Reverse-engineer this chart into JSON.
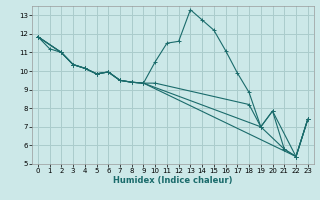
{
  "xlabel": "Humidex (Indice chaleur)",
  "bg_color": "#cce8e8",
  "grid_color": "#aacccc",
  "line_color": "#1a6b6b",
  "xlim": [
    -0.5,
    23.5
  ],
  "ylim": [
    5,
    13.5
  ],
  "xticks": [
    0,
    1,
    2,
    3,
    4,
    5,
    6,
    7,
    8,
    9,
    10,
    11,
    12,
    13,
    14,
    15,
    16,
    17,
    18,
    19,
    20,
    21,
    22,
    23
  ],
  "yticks": [
    5,
    6,
    7,
    8,
    9,
    10,
    11,
    12,
    13
  ],
  "lines": [
    {
      "x": [
        0,
        1,
        2,
        3,
        4,
        5,
        6,
        7,
        8,
        9,
        10,
        11,
        12,
        13,
        14,
        15,
        16,
        17,
        18,
        19,
        20,
        21,
        22,
        23
      ],
      "y": [
        11.85,
        11.2,
        11.0,
        10.35,
        10.15,
        9.85,
        9.95,
        9.5,
        9.4,
        9.35,
        10.5,
        11.5,
        11.6,
        13.3,
        12.75,
        12.2,
        11.1,
        9.9,
        8.85,
        7.0,
        7.85,
        5.8,
        5.4,
        7.4
      ]
    },
    {
      "x": [
        0,
        2,
        3,
        4,
        5,
        6,
        7,
        8,
        9,
        10,
        18,
        19,
        20,
        22,
        23
      ],
      "y": [
        11.85,
        11.0,
        10.35,
        10.15,
        9.85,
        9.95,
        9.5,
        9.4,
        9.35,
        9.35,
        8.2,
        7.0,
        7.85,
        5.4,
        7.4
      ]
    },
    {
      "x": [
        0,
        2,
        3,
        4,
        5,
        6,
        7,
        8,
        9,
        19,
        21,
        22,
        23
      ],
      "y": [
        11.85,
        11.0,
        10.35,
        10.15,
        9.85,
        9.95,
        9.5,
        9.4,
        9.35,
        7.0,
        5.8,
        5.4,
        7.4
      ]
    },
    {
      "x": [
        0,
        2,
        3,
        4,
        5,
        6,
        7,
        8,
        9,
        22,
        23
      ],
      "y": [
        11.85,
        11.0,
        10.35,
        10.15,
        9.85,
        9.95,
        9.5,
        9.4,
        9.35,
        5.4,
        7.4
      ]
    }
  ]
}
